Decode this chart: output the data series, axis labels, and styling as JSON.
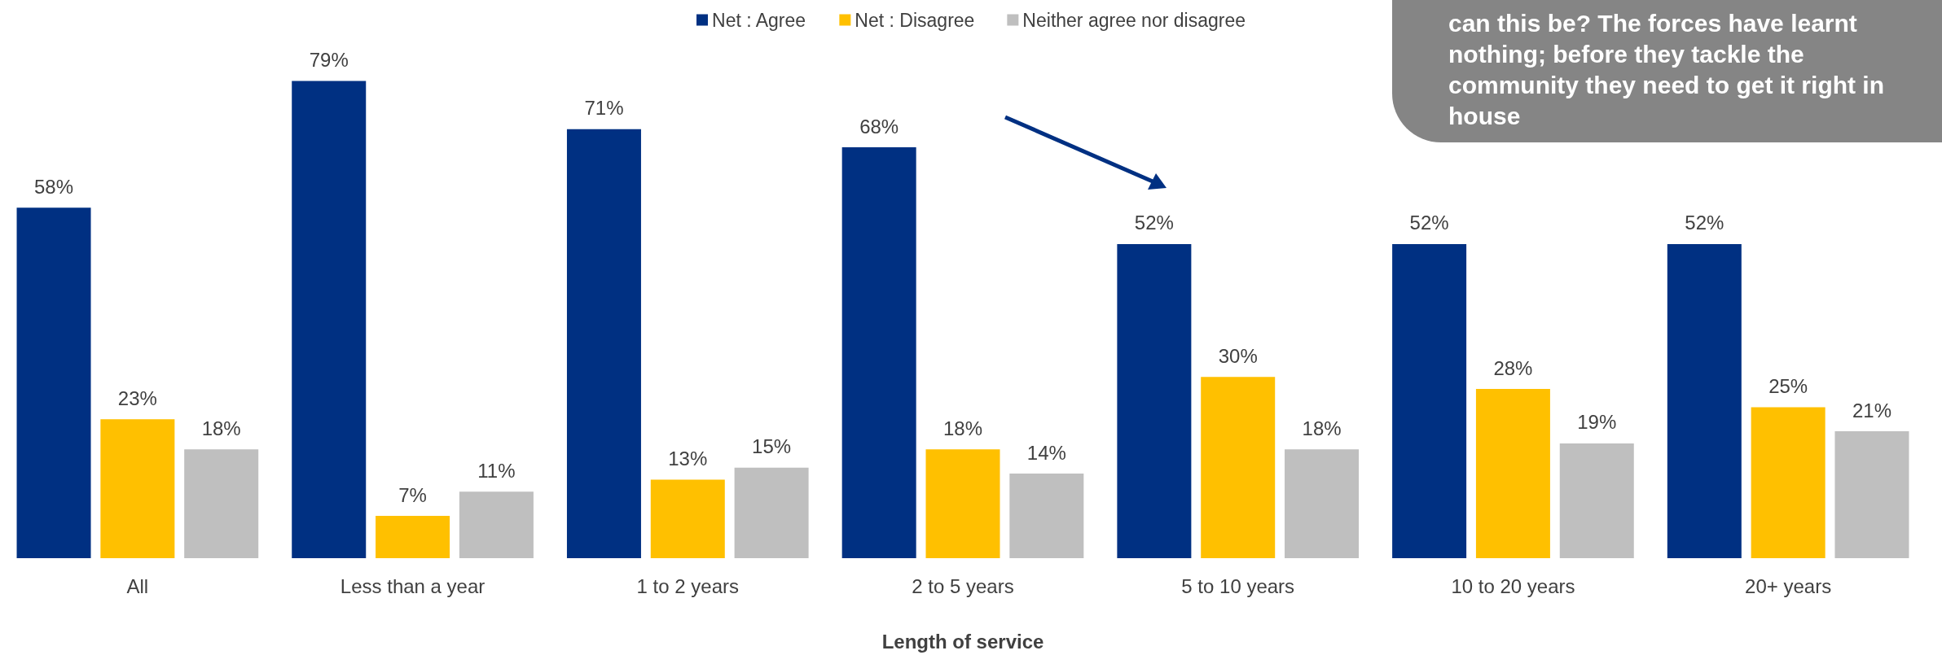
{
  "chart_data": {
    "type": "bar",
    "xlabel": "Length of service",
    "categories": [
      "All",
      "Less than a year",
      "1 to 2 years",
      "2 to 5 years",
      "5 to 10 years",
      "10 to 20 years",
      "20+ years"
    ],
    "series": [
      {
        "name": "Net : Agree",
        "color": "#003082",
        "values": [
          58,
          79,
          71,
          68,
          52,
          52,
          52
        ],
        "value_labels": [
          "58%",
          "79%",
          "71%",
          "68%",
          "52%",
          "52%",
          "52%"
        ]
      },
      {
        "name": "Net : Disagree",
        "color": "#ffc000",
        "values": [
          23,
          7,
          13,
          18,
          30,
          28,
          25
        ],
        "value_labels": [
          "23%",
          "7%",
          "13%",
          "18%",
          "30%",
          "28%",
          "25%"
        ]
      },
      {
        "name": "Neither agree nor disagree",
        "color": "#bfbfbf",
        "values": [
          18,
          11,
          15,
          14,
          18,
          19,
          21
        ],
        "value_labels": [
          "18%",
          "11%",
          "15%",
          "14%",
          "18%",
          "19%",
          "21%"
        ]
      }
    ],
    "legend": "top",
    "annotations": [
      "can this be? The forces have learnt nothing; before they tackle the community they need to get it right in house"
    ]
  }
}
